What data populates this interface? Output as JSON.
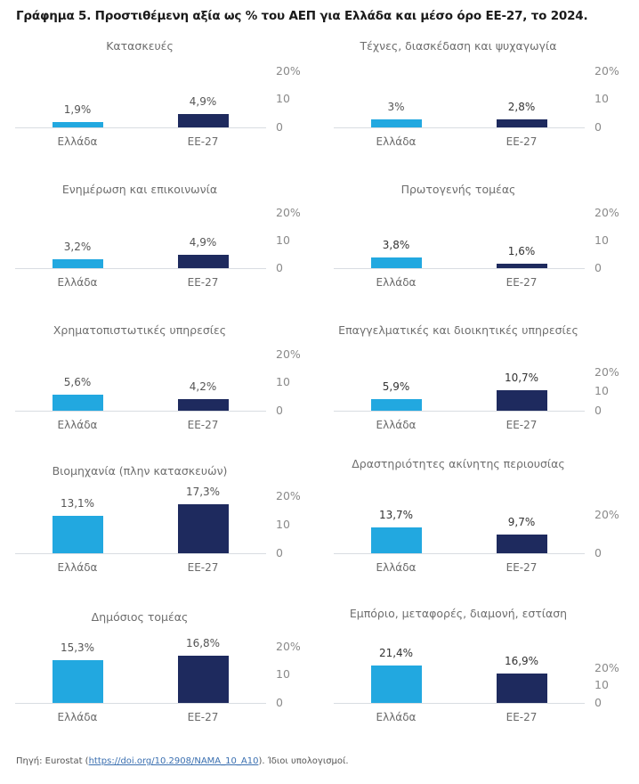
{
  "title": "Γράφημα 5. Προστιθέμενη αξία ως % του ΑΕΠ για Ελλάδα και μέσο όρο ΕΕ-27, το 2024.",
  "source": {
    "prefix": "Πηγή: Eurostat (",
    "link_text": "https://doi.org/10.2908/NAMA_10_A10",
    "suffix": "). Ίδιοι υπολογισμοί."
  },
  "colors": {
    "greece": "#22A8E0",
    "eu27": "#1E2A5E"
  },
  "chart_data": [
    {
      "type": "bar",
      "title": "Κατασκευές",
      "categories": [
        "Ελλάδα",
        "ΕΕ-27"
      ],
      "values": [
        1.9,
        4.9
      ],
      "labels": [
        "1,9%",
        "4,9%"
      ],
      "yticks": [
        "0",
        "10",
        "20%"
      ],
      "ylim": [
        0,
        20
      ]
    },
    {
      "type": "bar",
      "title": "Τέχνες, διασκέδαση και ψυχαγωγία",
      "categories": [
        "Ελλάδα",
        "ΕΕ-27"
      ],
      "values": [
        3.0,
        2.8
      ],
      "labels": [
        "3%",
        "2,8%"
      ],
      "yticks": [
        "0",
        "10",
        "20%"
      ],
      "ylim": [
        0,
        20
      ]
    },
    {
      "type": "bar",
      "title": "Ενημέρωση και επικοινωνία",
      "categories": [
        "Ελλάδα",
        "ΕΕ-27"
      ],
      "values": [
        3.2,
        4.9
      ],
      "labels": [
        "3,2%",
        "4,9%"
      ],
      "yticks": [
        "0",
        "10",
        "20%"
      ],
      "ylim": [
        0,
        20
      ]
    },
    {
      "type": "bar",
      "title": "Πρωτογενής τομέας",
      "categories": [
        "Ελλάδα",
        "ΕΕ-27"
      ],
      "values": [
        3.8,
        1.6
      ],
      "labels": [
        "3,8%",
        "1,6%"
      ],
      "yticks": [
        "0",
        "10",
        "20%"
      ],
      "ylim": [
        0,
        20
      ]
    },
    {
      "type": "bar",
      "title": "Χρηματοπιστωτικές υπηρεσίες",
      "categories": [
        "Ελλάδα",
        "ΕΕ-27"
      ],
      "values": [
        5.6,
        4.2
      ],
      "labels": [
        "5,6%",
        "4,2%"
      ],
      "yticks": [
        "0",
        "10",
        "20%"
      ],
      "ylim": [
        0,
        20
      ]
    },
    {
      "type": "bar",
      "title": "Επαγγελματικές και διοικητικές υπηρεσίες",
      "categories": [
        "Ελλάδα",
        "ΕΕ-27"
      ],
      "values": [
        5.9,
        10.7
      ],
      "labels": [
        "5,9%",
        "10,7%"
      ],
      "yticks": [
        "0",
        "10",
        "20%"
      ],
      "ylim": [
        0,
        20
      ]
    },
    {
      "type": "bar",
      "title": "Βιομηχανία (πλην κατασκευών)",
      "categories": [
        "Ελλάδα",
        "ΕΕ-27"
      ],
      "values": [
        13.1,
        17.3
      ],
      "labels": [
        "13,1%",
        "17,3%"
      ],
      "yticks": [
        "0",
        "10",
        "20%"
      ],
      "ylim": [
        0,
        20
      ]
    },
    {
      "type": "bar",
      "title": "Δραστηριότητες ακίνητης περιουσίας",
      "categories": [
        "Ελλάδα",
        "ΕΕ-27"
      ],
      "values": [
        13.7,
        9.7
      ],
      "labels": [
        "13,7%",
        "9,7%"
      ],
      "yticks": [
        "0",
        "20%"
      ],
      "ylim": [
        0,
        20
      ]
    },
    {
      "type": "bar",
      "title": "Δημόσιος τομέας",
      "categories": [
        "Ελλάδα",
        "ΕΕ-27"
      ],
      "values": [
        15.3,
        16.8
      ],
      "labels": [
        "15,3%",
        "16,8%"
      ],
      "yticks": [
        "0",
        "10",
        "20%"
      ],
      "ylim": [
        0,
        20
      ]
    },
    {
      "type": "bar",
      "title": "Εμπόριο, μεταφορές, διαμονή, εστίαση",
      "categories": [
        "Ελλάδα",
        "ΕΕ-27"
      ],
      "values": [
        21.4,
        16.9
      ],
      "labels": [
        "21,4%",
        "16,9%"
      ],
      "yticks": [
        "0",
        "10",
        "20%"
      ],
      "ylim": [
        0,
        20
      ]
    }
  ]
}
